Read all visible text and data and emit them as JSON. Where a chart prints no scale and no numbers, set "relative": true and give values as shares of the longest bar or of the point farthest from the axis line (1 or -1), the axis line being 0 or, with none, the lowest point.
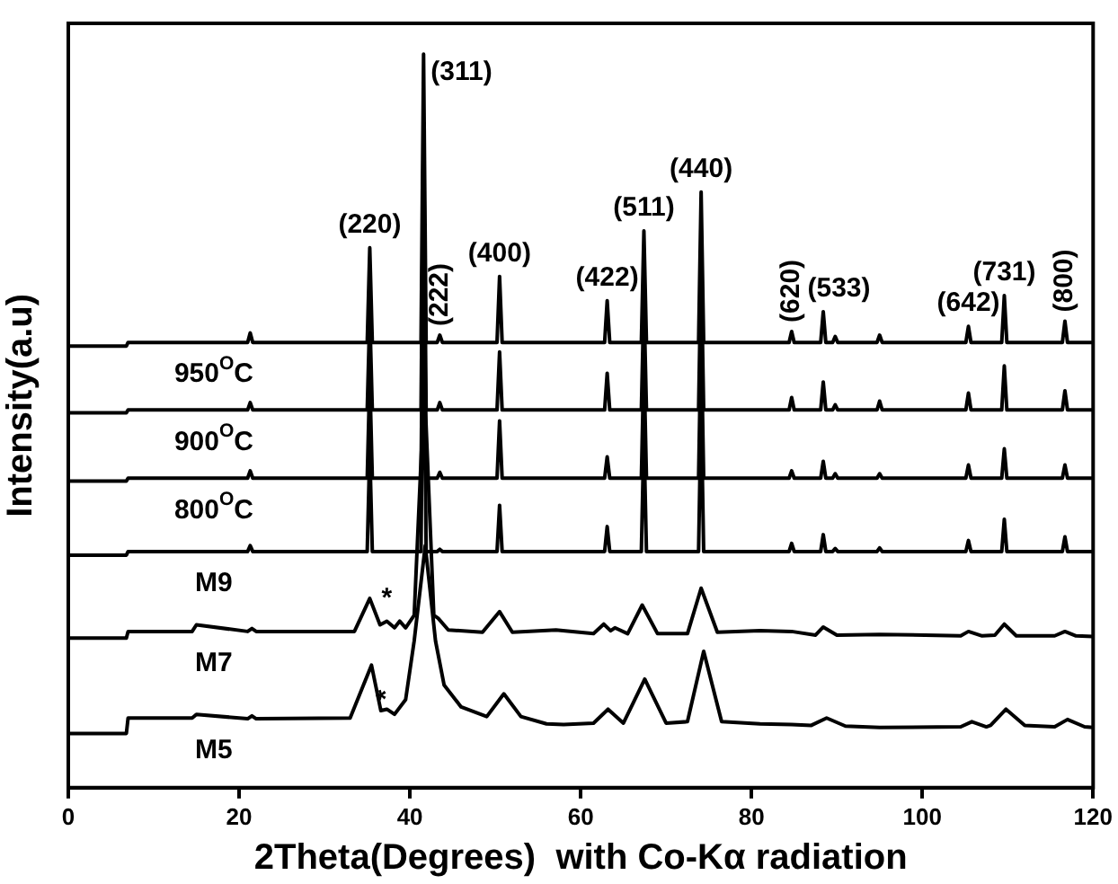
{
  "chart_data": {
    "type": "line",
    "xlabel": "2Theta(Degrees)  with Co-Kα radiation",
    "ylabel": "Intensity(a.u)",
    "relative": true,
    "xlim": [
      0,
      120
    ],
    "xticks": [
      0,
      20,
      40,
      60,
      80,
      100,
      120
    ],
    "marker": "none",
    "line_style": "solid",
    "series": [
      {
        "name": "950$^{O}$C",
        "color": "#000000",
        "x": [
          0,
          6.8,
          7,
          21,
          21.3,
          21.6,
          35,
          35.3,
          35.6,
          41.3,
          41.6,
          41.9,
          43.2,
          43.5,
          43.8,
          50.2,
          50.5,
          50.8,
          62.8,
          63.1,
          63.4,
          67.1,
          67.4,
          67.7,
          73.8,
          74.1,
          74.4,
          84.4,
          84.7,
          85,
          88.1,
          88.4,
          88.7,
          89.5,
          89.8,
          90.1,
          94.7,
          95,
          95.3,
          105.1,
          105.4,
          105.7,
          109.3,
          109.6,
          109.9,
          116.4,
          116.7,
          117,
          120
        ],
        "values": [
          0.602,
          0.602,
          0.607,
          0.607,
          0.62,
          0.607,
          0.607,
          0.736,
          0.607,
          0.607,
          1,
          0.607,
          0.607,
          0.617,
          0.607,
          0.607,
          0.697,
          0.607,
          0.607,
          0.664,
          0.607,
          0.607,
          0.759,
          0.607,
          0.607,
          0.812,
          0.607,
          0.607,
          0.622,
          0.607,
          0.607,
          0.649,
          0.607,
          0.607,
          0.615,
          0.607,
          0.607,
          0.617,
          0.607,
          0.607,
          0.629,
          0.607,
          0.607,
          0.671,
          0.607,
          0.607,
          0.636,
          0.607,
          0.607
        ]
      },
      {
        "name": "900$^{O}$C",
        "color": "#000000",
        "x": [
          0,
          6.8,
          7,
          21,
          21.3,
          21.6,
          35,
          35.3,
          35.6,
          41.3,
          41.6,
          41.9,
          43.2,
          43.5,
          43.8,
          50.2,
          50.5,
          50.8,
          62.8,
          63.1,
          63.4,
          67.1,
          67.4,
          67.7,
          73.8,
          74.1,
          74.4,
          84.4,
          84.7,
          85,
          88.1,
          88.4,
          88.7,
          89.5,
          89.8,
          90.1,
          94.7,
          95,
          95.3,
          105.1,
          105.4,
          105.7,
          109.3,
          109.6,
          109.9,
          116.4,
          116.7,
          117,
          120
        ],
        "values": [
          0.511,
          0.511,
          0.515,
          0.515,
          0.525,
          0.515,
          0.515,
          0.645,
          0.515,
          0.515,
          0.9,
          0.515,
          0.515,
          0.525,
          0.515,
          0.515,
          0.594,
          0.515,
          0.515,
          0.565,
          0.515,
          0.515,
          0.665,
          0.515,
          0.515,
          0.715,
          0.515,
          0.515,
          0.532,
          0.515,
          0.515,
          0.553,
          0.515,
          0.515,
          0.522,
          0.515,
          0.515,
          0.527,
          0.515,
          0.515,
          0.538,
          0.515,
          0.515,
          0.575,
          0.515,
          0.515,
          0.541,
          0.515,
          0.515
        ]
      },
      {
        "name": "800$^{O}$C",
        "color": "#000000",
        "x": [
          0,
          6.8,
          7,
          21,
          21.3,
          21.6,
          35,
          35.3,
          35.6,
          41.3,
          41.6,
          41.9,
          43.2,
          43.5,
          43.8,
          50.2,
          50.5,
          50.8,
          62.8,
          63.1,
          63.4,
          67.1,
          67.4,
          67.7,
          73.8,
          74.1,
          74.4,
          84.4,
          84.7,
          85,
          88.1,
          88.4,
          88.7,
          89.5,
          89.8,
          90.1,
          94.7,
          95,
          95.3,
          105.1,
          105.4,
          105.7,
          109.3,
          109.6,
          109.9,
          116.4,
          116.7,
          117,
          120
        ],
        "values": [
          0.418,
          0.418,
          0.422,
          0.422,
          0.432,
          0.422,
          0.422,
          0.56,
          0.422,
          0.422,
          0.8,
          0.422,
          0.422,
          0.43,
          0.422,
          0.422,
          0.5,
          0.422,
          0.422,
          0.451,
          0.422,
          0.422,
          0.58,
          0.422,
          0.422,
          0.62,
          0.422,
          0.422,
          0.432,
          0.422,
          0.422,
          0.445,
          0.422,
          0.422,
          0.428,
          0.422,
          0.422,
          0.428,
          0.422,
          0.422,
          0.44,
          0.422,
          0.422,
          0.462,
          0.422,
          0.422,
          0.44,
          0.422,
          0.422
        ]
      },
      {
        "name": "M9",
        "color": "#000000",
        "x": [
          0,
          6.8,
          7,
          21,
          21.3,
          21.6,
          35,
          35.3,
          35.6,
          41.3,
          41.6,
          41.9,
          43.2,
          43.5,
          43.8,
          50.2,
          50.5,
          50.8,
          62.8,
          63.1,
          63.4,
          67.1,
          67.4,
          67.7,
          73.8,
          74.1,
          74.4,
          84.4,
          84.7,
          85,
          88.1,
          88.4,
          88.7,
          89.5,
          89.8,
          90.1,
          94.7,
          95,
          95.3,
          105.1,
          105.4,
          105.7,
          109.3,
          109.6,
          109.9,
          116.4,
          116.7,
          117,
          120
        ],
        "values": [
          0.317,
          0.317,
          0.322,
          0.322,
          0.33,
          0.322,
          0.322,
          0.46,
          0.322,
          0.322,
          0.7,
          0.322,
          0.322,
          0.325,
          0.322,
          0.322,
          0.385,
          0.322,
          0.322,
          0.356,
          0.322,
          0.322,
          0.48,
          0.322,
          0.322,
          0.52,
          0.322,
          0.322,
          0.333,
          0.322,
          0.322,
          0.345,
          0.322,
          0.322,
          0.326,
          0.322,
          0.322,
          0.327,
          0.322,
          0.322,
          0.337,
          0.322,
          0.322,
          0.366,
          0.322,
          0.322,
          0.342,
          0.322,
          0.322
        ]
      },
      {
        "name": "M7",
        "color": "#000000",
        "x": [
          0,
          6.8,
          7,
          14.5,
          15,
          21,
          21.5,
          22,
          33.5,
          35.3,
          36.5,
          37.3,
          38.2,
          38.8,
          39.5,
          40.5,
          41.7,
          42.8,
          43.3,
          44.5,
          48.5,
          50.5,
          52,
          57.1,
          61.5,
          62.7,
          63.5,
          64,
          65.5,
          67.2,
          69,
          72.5,
          74.1,
          76,
          81,
          84.7,
          87.5,
          88.4,
          90,
          95,
          104.5,
          105.4,
          107,
          108.5,
          109.6,
          111,
          115.5,
          116.7,
          118,
          120
        ],
        "values": [
          0.204,
          0.204,
          0.213,
          0.213,
          0.222,
          0.213,
          0.217,
          0.213,
          0.213,
          0.258,
          0.222,
          0.227,
          0.218,
          0.227,
          0.218,
          0.235,
          0.55,
          0.235,
          0.231,
          0.215,
          0.212,
          0.24,
          0.212,
          0.215,
          0.21,
          0.223,
          0.214,
          0.218,
          0.21,
          0.249,
          0.21,
          0.21,
          0.272,
          0.212,
          0.214,
          0.213,
          0.208,
          0.219,
          0.208,
          0.209,
          0.207,
          0.213,
          0.207,
          0.208,
          0.223,
          0.207,
          0.207,
          0.213,
          0.207,
          0.206
        ]
      },
      {
        "name": "M5",
        "color": "#000000",
        "x": [
          0,
          6.8,
          7,
          14.5,
          15,
          21,
          21.5,
          22,
          33,
          35.5,
          36.6,
          37.3,
          38.2,
          39.5,
          40.5,
          41.8,
          43,
          44,
          46,
          49,
          51,
          53,
          56,
          58,
          61.5,
          63.2,
          65,
          67.5,
          70,
          72.5,
          74.4,
          76.5,
          81,
          84.7,
          87,
          88.8,
          91,
          95,
          104.5,
          105.8,
          107.5,
          108,
          109.8,
          112,
          115.5,
          117,
          119,
          120
        ],
        "values": [
          0.074,
          0.074,
          0.095,
          0.095,
          0.1,
          0.094,
          0.098,
          0.094,
          0.095,
          0.167,
          0.105,
          0.107,
          0.1,
          0.12,
          0.2,
          0.33,
          0.2,
          0.14,
          0.11,
          0.097,
          0.128,
          0.097,
          0.087,
          0.086,
          0.088,
          0.107,
          0.088,
          0.148,
          0.088,
          0.09,
          0.186,
          0.09,
          0.087,
          0.086,
          0.085,
          0.095,
          0.084,
          0.082,
          0.083,
          0.09,
          0.083,
          0.085,
          0.107,
          0.085,
          0.083,
          0.093,
          0.083,
          0.082
        ]
      }
    ],
    "annotations": [
      {
        "text": "(220)",
        "x": 35.3,
        "y": 0.736
      },
      {
        "text": "(311)",
        "x": 41.6,
        "y": 1
      },
      {
        "text": "(400)",
        "x": 50.5,
        "y": 0.697
      },
      {
        "text": "(511)",
        "x": 67.4,
        "y": 0.759
      },
      {
        "text": "(440)",
        "x": 74.1,
        "y": 0.812
      },
      {
        "text": "(731)",
        "x": 109.6,
        "y": 0.671
      },
      {
        "text": "(422)",
        "x": 63.1,
        "y": 0.664
      },
      {
        "text": "(642)",
        "x": 105.4,
        "y": 0.629
      },
      {
        "text": "(222)",
        "x": 43.5,
        "y": 0.617
      },
      {
        "text": "(620)",
        "x": 84.7,
        "y": 0.622
      },
      {
        "text": "(800)",
        "x": 116.7,
        "y": 0.636
      },
      {
        "text": "(533)",
        "x": 88.4,
        "y": 0.649
      },
      {
        "text": "*",
        "x": 37.3,
        "y": 0.227
      },
      {
        "text": "*",
        "x": 37.3,
        "y": 0.107
      }
    ]
  }
}
